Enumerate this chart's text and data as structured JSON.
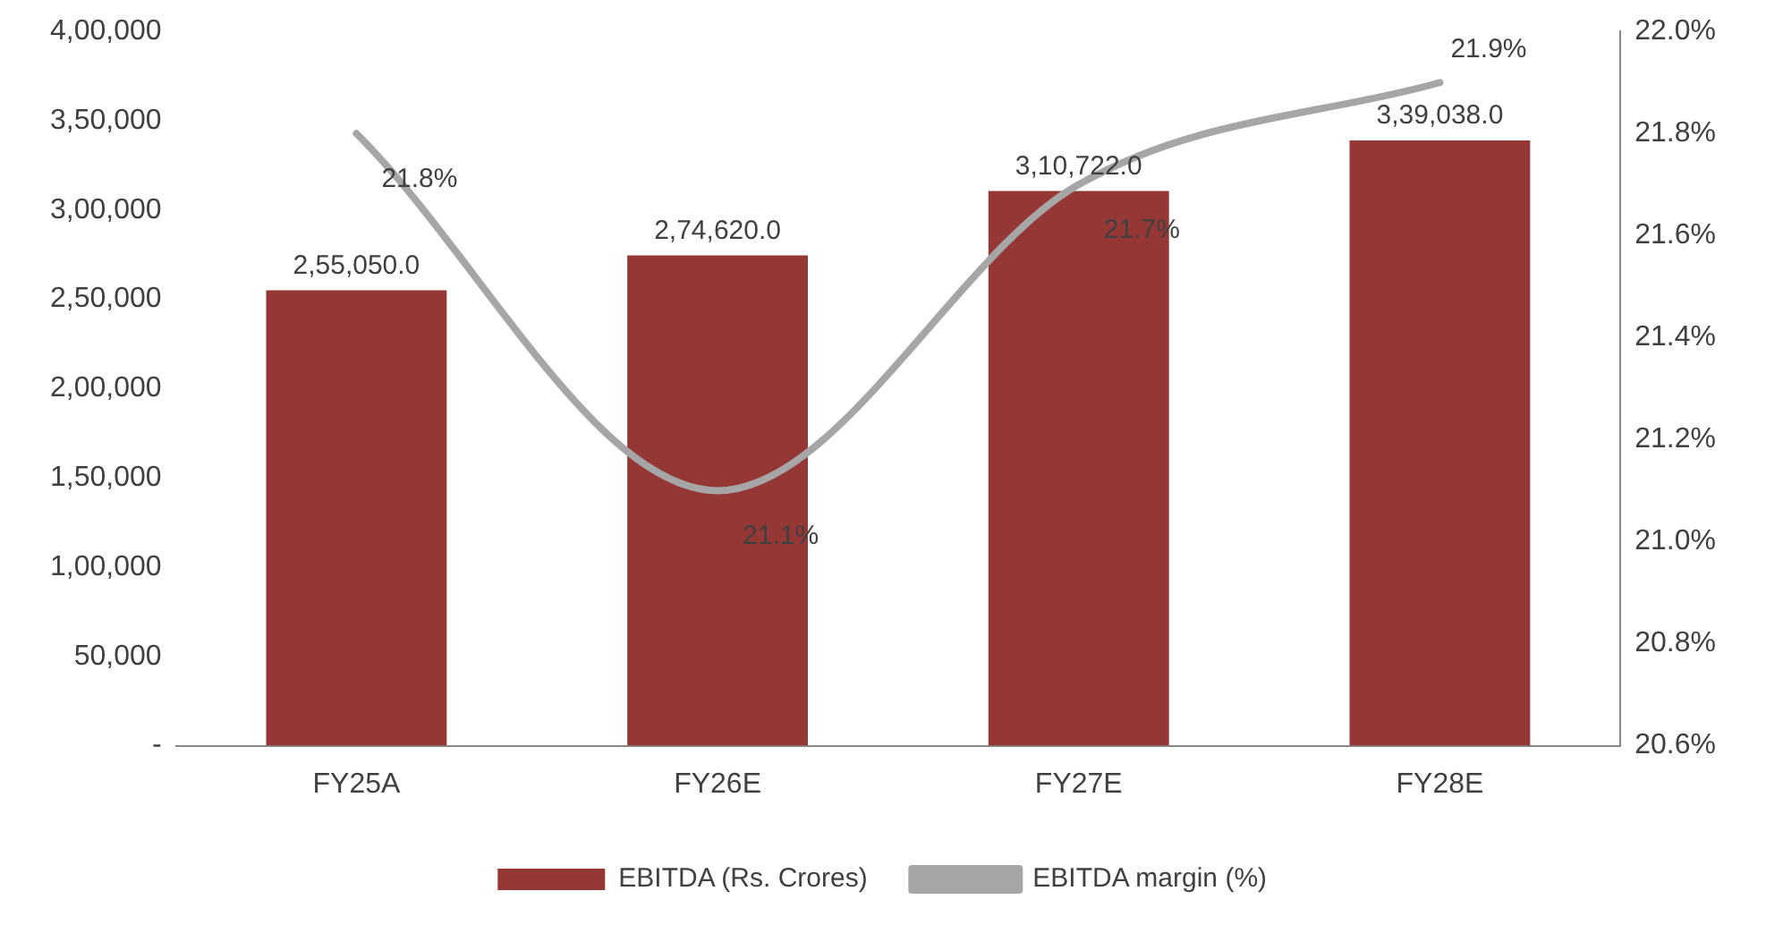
{
  "chart_data": {
    "type": "bar",
    "categories": [
      "FY25A",
      "FY26E",
      "FY27E",
      "FY28E"
    ],
    "series": [
      {
        "name": "EBITDA (Rs. Crores)",
        "color": "#953735",
        "values": [
          255050,
          274620,
          310722,
          339038
        ],
        "value_labels": [
          "2,55,050.0",
          "2,74,620.0",
          "3,10,722.0",
          "3,39,038.0"
        ]
      },
      {
        "name": "EBITDA margin (%)",
        "type": "line",
        "axis": "y2",
        "color": "#a6a6a6",
        "values": [
          21.8,
          21.1,
          21.7,
          21.9
        ],
        "value_labels": [
          "21.8%",
          "21.1%",
          "21.7%",
          "21.9%"
        ]
      }
    ],
    "ylim": [
      0,
      400000
    ],
    "yticks": [
      {
        "value": 0,
        "label": "-"
      },
      {
        "value": 50000,
        "label": "50,000"
      },
      {
        "value": 100000,
        "label": "1,00,000"
      },
      {
        "value": 150000,
        "label": "1,50,000"
      },
      {
        "value": 200000,
        "label": "2,00,000"
      },
      {
        "value": 250000,
        "label": "2,50,000"
      },
      {
        "value": 300000,
        "label": "3,00,000"
      },
      {
        "value": 350000,
        "label": "3,50,000"
      },
      {
        "value": 400000,
        "label": "4,00,000"
      }
    ],
    "y2lim": [
      20.6,
      22.0
    ],
    "y2ticks": [
      {
        "value": 20.6,
        "label": "20.6%"
      },
      {
        "value": 20.8,
        "label": "20.8%"
      },
      {
        "value": 21.0,
        "label": "21.0%"
      },
      {
        "value": 21.2,
        "label": "21.2%"
      },
      {
        "value": 21.4,
        "label": "21.4%"
      },
      {
        "value": 21.6,
        "label": "21.6%"
      },
      {
        "value": 21.8,
        "label": "21.8%"
      },
      {
        "value": 22.0,
        "label": "22.0%"
      }
    ],
    "grid": false,
    "legend": "bottom",
    "marker": "none",
    "line_style": "solid"
  }
}
